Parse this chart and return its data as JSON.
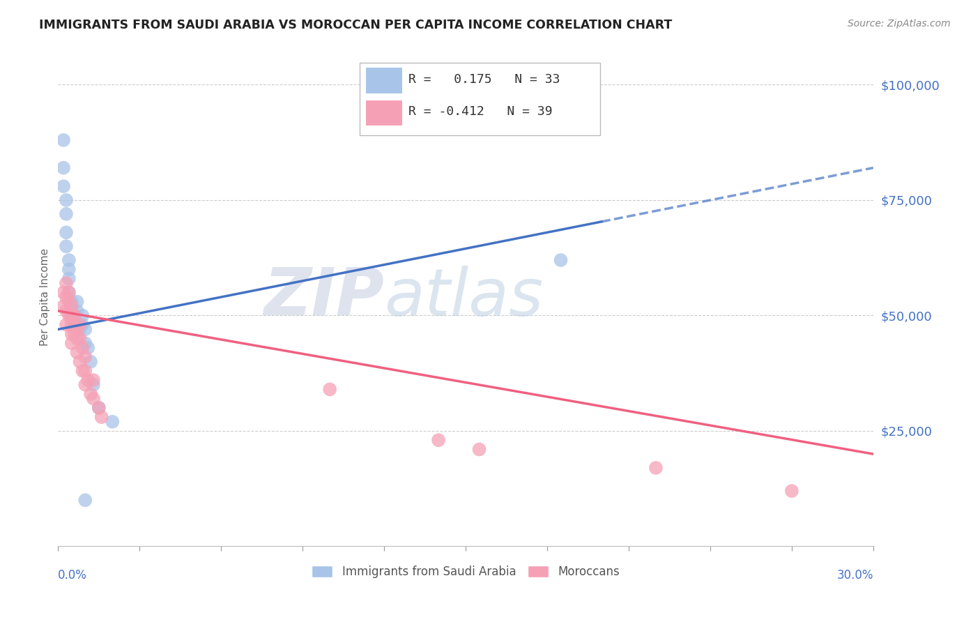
{
  "title": "IMMIGRANTS FROM SAUDI ARABIA VS MOROCCAN PER CAPITA INCOME CORRELATION CHART",
  "source": "Source: ZipAtlas.com",
  "ylabel": "Per Capita Income",
  "xlim": [
    0.0,
    0.3
  ],
  "ylim": [
    0,
    108000
  ],
  "watermark_zip": "ZIP",
  "watermark_atlas": "atlas",
  "saudi_R": 0.175,
  "saudi_N": 33,
  "moroccan_R": -0.412,
  "moroccan_N": 39,
  "saudi_color": "#a8c4e8",
  "moroccan_color": "#f5a0b5",
  "saudi_line_color": "#4472c4",
  "moroccan_line_color": "#f06080",
  "saudi_scatter_x": [
    0.002,
    0.002,
    0.002,
    0.003,
    0.003,
    0.003,
    0.003,
    0.004,
    0.004,
    0.004,
    0.004,
    0.005,
    0.005,
    0.005,
    0.005,
    0.005,
    0.006,
    0.006,
    0.007,
    0.007,
    0.008,
    0.008,
    0.009,
    0.009,
    0.01,
    0.01,
    0.011,
    0.012,
    0.013,
    0.015,
    0.02,
    0.185,
    0.01
  ],
  "saudi_scatter_y": [
    88000,
    82000,
    78000,
    75000,
    72000,
    68000,
    65000,
    62000,
    60000,
    58000,
    55000,
    53000,
    52000,
    51000,
    50000,
    49000,
    50000,
    49500,
    51000,
    53000,
    48000,
    47000,
    50000,
    48000,
    47000,
    44000,
    43000,
    40000,
    35000,
    30000,
    27000,
    62000,
    10000
  ],
  "moroccan_scatter_x": [
    0.002,
    0.002,
    0.003,
    0.003,
    0.003,
    0.003,
    0.004,
    0.004,
    0.004,
    0.005,
    0.005,
    0.005,
    0.005,
    0.005,
    0.006,
    0.006,
    0.006,
    0.007,
    0.007,
    0.007,
    0.008,
    0.008,
    0.008,
    0.009,
    0.009,
    0.01,
    0.01,
    0.01,
    0.011,
    0.012,
    0.013,
    0.013,
    0.015,
    0.016,
    0.1,
    0.14,
    0.155,
    0.22,
    0.27
  ],
  "moroccan_scatter_y": [
    55000,
    52000,
    57000,
    54000,
    51000,
    48000,
    55000,
    53000,
    50000,
    52000,
    50000,
    48000,
    46000,
    44000,
    50000,
    48000,
    46000,
    47000,
    45000,
    42000,
    48000,
    45000,
    40000,
    43000,
    38000,
    41000,
    38000,
    35000,
    36000,
    33000,
    36000,
    32000,
    30000,
    28000,
    34000,
    23000,
    21000,
    17000,
    12000
  ],
  "saudi_line_x0": 0.0,
  "saudi_line_y0": 47000,
  "saudi_line_x1": 0.3,
  "saudi_line_y1": 82000,
  "saudi_line_solid_end": 0.2,
  "moroccan_line_x0": 0.0,
  "moroccan_line_y0": 51000,
  "moroccan_line_x1": 0.3,
  "moroccan_line_y1": 20000
}
